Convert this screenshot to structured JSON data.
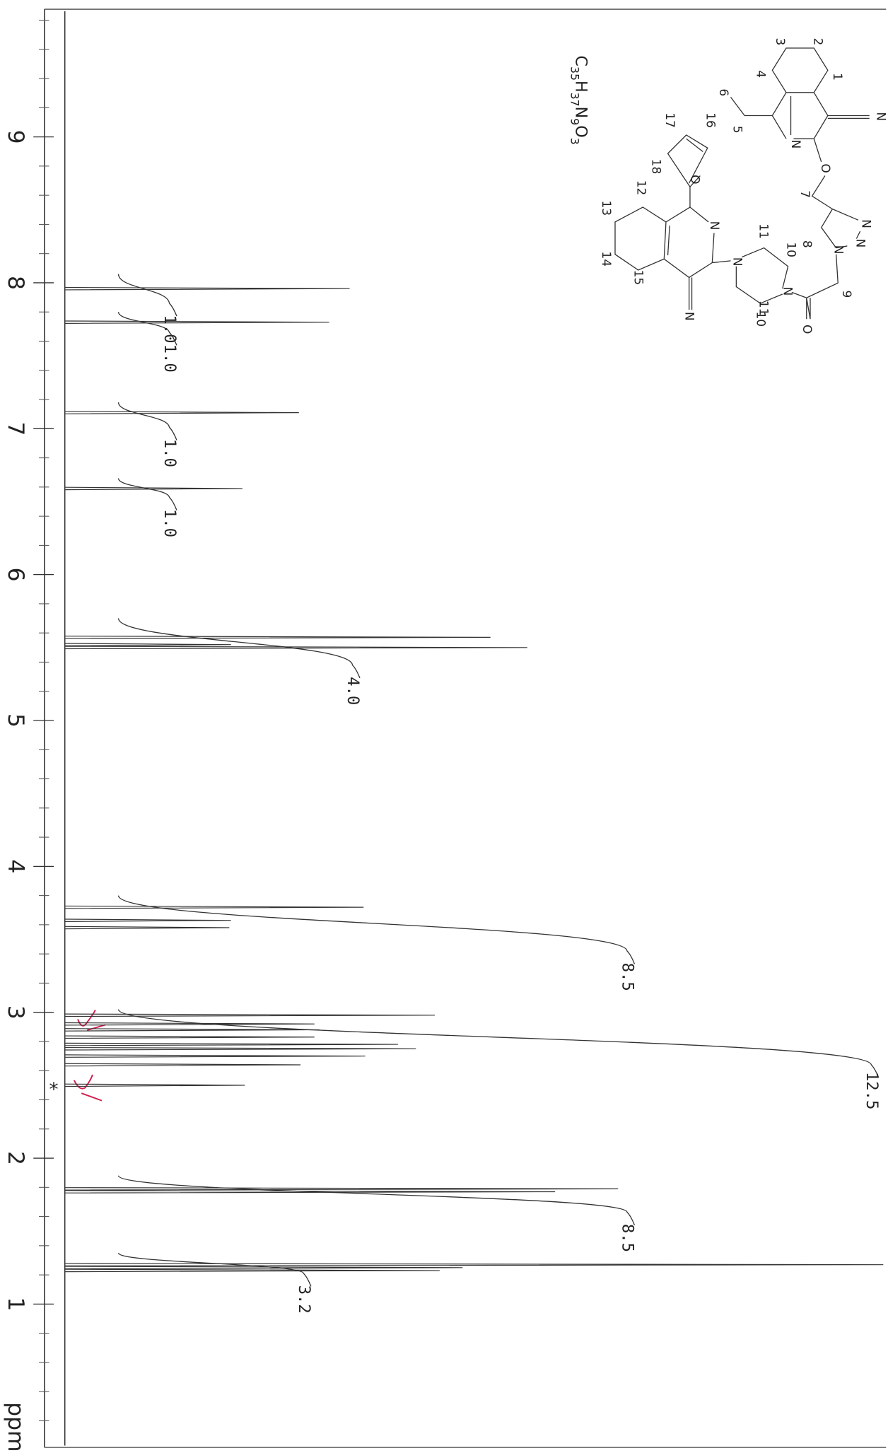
{
  "chart_data": {
    "type": "nmr",
    "x_label": "ppm",
    "xlim": [
      9.88,
      0.03
    ],
    "xticks": [
      9,
      8,
      7,
      6,
      5,
      4,
      3,
      2,
      1
    ],
    "xminor": [
      0.2,
      0.4,
      0.6,
      0.8,
      1.2,
      1.4,
      1.6,
      1.8,
      2.2,
      2.4,
      2.6,
      2.8,
      3.2,
      3.4,
      3.6,
      3.8,
      4.2,
      4.4,
      4.6,
      4.8,
      5.2,
      5.4,
      5.6,
      5.8,
      6.2,
      6.4,
      6.6,
      6.8,
      7.2,
      7.4,
      7.6,
      7.8,
      8.2,
      8.4,
      8.6,
      8.8,
      9.2,
      9.4,
      9.6,
      9.8
    ],
    "ylim": [
      0,
      100
    ],
    "color": "#333333",
    "x": [
      7.96,
      7.73,
      7.11,
      6.59,
      5.57,
      5.52,
      5.5,
      3.72,
      3.63,
      3.58,
      2.98,
      2.92,
      2.88,
      2.83,
      2.78,
      2.75,
      2.7,
      2.64,
      2.5,
      1.79,
      1.77,
      1.27,
      1.25,
      1.23
    ],
    "values": [
      34.8,
      32.3,
      28.6,
      21.7,
      52.0,
      20.3,
      56.5,
      36.5,
      20.3,
      20.1,
      45.2,
      30.5,
      31.1,
      30.5,
      40.7,
      42.9,
      36.7,
      28.8,
      22.0,
      67.6,
      59.9,
      100,
      48.6,
      45.8
    ],
    "integrals": {
      "ranges": [
        [
          8.06,
          7.86
        ],
        [
          7.8,
          7.66
        ],
        [
          7.18,
          7.01
        ],
        [
          6.66,
          6.53
        ],
        [
          5.7,
          5.38
        ],
        [
          3.8,
          3.42
        ],
        [
          3.02,
          2.64
        ],
        [
          1.88,
          1.63
        ],
        [
          1.35,
          1.21
        ]
      ],
      "values": [
        1.0,
        1.0,
        1.0,
        1.0,
        4.0,
        8.5,
        12.5,
        8.5,
        3.2
      ],
      "value_labels": [
        "1.0",
        "1.0",
        "1.0",
        "1.0",
        "4.0",
        "8.5",
        "12.5",
        "8.5",
        "3.2"
      ]
    },
    "solvent_marker": "*",
    "structure": {
      "formula": "C35H37N9O3",
      "atoms": [
        "3",
        "2",
        "1",
        "4",
        "N",
        "6",
        "5",
        "N",
        "O",
        "16",
        "17",
        "O",
        "18",
        "12",
        "7",
        "N",
        "13",
        "N",
        "N",
        "N",
        "11",
        "10",
        "8",
        "N",
        "14",
        "9",
        "N",
        "15",
        "11",
        "10",
        "O",
        "N"
      ]
    }
  }
}
